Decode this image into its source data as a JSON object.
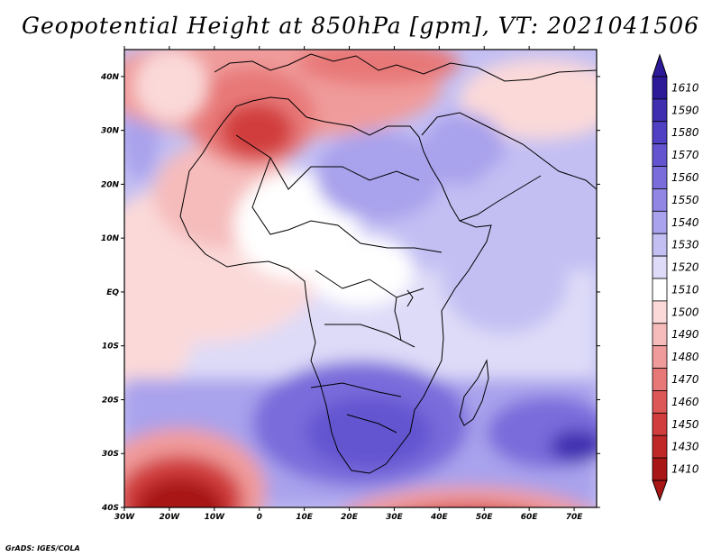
{
  "title": "Geopotential Height at 850hPa [gpm], VT: 2021041506",
  "credit": "GrADS: IGES/COLA",
  "map": {
    "lon_range": [
      -30,
      75
    ],
    "lat_range": [
      -40,
      45
    ],
    "x_ticks": [
      {
        "lon": -30,
        "label": "30W"
      },
      {
        "lon": -20,
        "label": "20W"
      },
      {
        "lon": -10,
        "label": "10W"
      },
      {
        "lon": 0,
        "label": "0"
      },
      {
        "lon": 10,
        "label": "10E"
      },
      {
        "lon": 20,
        "label": "20E"
      },
      {
        "lon": 30,
        "label": "30E"
      },
      {
        "lon": 40,
        "label": "40E"
      },
      {
        "lon": 50,
        "label": "50E"
      },
      {
        "lon": 60,
        "label": "60E"
      },
      {
        "lon": 70,
        "label": "70E"
      }
    ],
    "y_ticks": [
      {
        "lat": 40,
        "label": "40N"
      },
      {
        "lat": 30,
        "label": "30N"
      },
      {
        "lat": 20,
        "label": "20N"
      },
      {
        "lat": 10,
        "label": "10N"
      },
      {
        "lat": 0,
        "label": "EQ"
      },
      {
        "lat": -10,
        "label": "10S"
      },
      {
        "lat": -20,
        "label": "20S"
      },
      {
        "lat": -30,
        "label": "30S"
      },
      {
        "lat": -40,
        "label": "40S"
      }
    ]
  },
  "colorbar": {
    "levels": [
      {
        "label": "1610",
        "color": "#2d1a99"
      },
      {
        "label": "1590",
        "color": "#3f2fb0"
      },
      {
        "label": "1580",
        "color": "#5040c4"
      },
      {
        "label": "1570",
        "color": "#6454d0"
      },
      {
        "label": "1560",
        "color": "#7a6cdb"
      },
      {
        "label": "1550",
        "color": "#9186e4"
      },
      {
        "label": "1540",
        "color": "#a9a2ec"
      },
      {
        "label": "1530",
        "color": "#c3bff3"
      },
      {
        "label": "1520",
        "color": "#dedbf8"
      },
      {
        "label": "1510",
        "color": "#ffffff"
      },
      {
        "label": "1500",
        "color": "#fbd9d9"
      },
      {
        "label": "1490",
        "color": "#f6bcbc"
      },
      {
        "label": "1480",
        "color": "#f09b9b"
      },
      {
        "label": "1470",
        "color": "#e87878"
      },
      {
        "label": "1460",
        "color": "#de5757"
      },
      {
        "label": "1450",
        "color": "#d13d3d"
      },
      {
        "label": "1430",
        "color": "#c02828"
      },
      {
        "label": "1410",
        "color": "#a81616"
      }
    ]
  }
}
